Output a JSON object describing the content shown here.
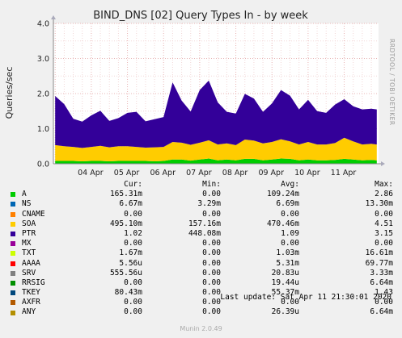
{
  "chart_data": {
    "type": "area",
    "title": "BIND_DNS [02] Query Types In - by week",
    "ylabel": "Queries/sec",
    "xlabel": "",
    "side_label": "RRDTOOL / TOBI OETIKER",
    "ylim": [
      0,
      4
    ],
    "yticks": [
      "0.0",
      "1.0",
      "2.0",
      "3.0",
      "4.0"
    ],
    "xticks": [
      "04 Apr",
      "05 Apr",
      "06 Apr",
      "07 Apr",
      "08 Apr",
      "09 Apr",
      "10 Apr",
      "11 Apr"
    ],
    "grid": true,
    "stacked": true,
    "x_days": [
      3.0,
      3.25,
      3.5,
      3.75,
      4.0,
      4.25,
      4.5,
      4.75,
      5.0,
      5.25,
      5.5,
      5.75,
      6.0,
      6.25,
      6.5,
      6.75,
      7.0,
      7.25,
      7.5,
      7.75,
      8.0,
      8.25,
      8.5,
      8.75,
      9.0,
      9.25,
      9.5,
      9.75,
      10.0,
      10.25,
      10.5,
      10.75,
      11.0,
      11.25,
      11.5,
      11.75,
      11.9
    ],
    "series": [
      {
        "name": "A",
        "color": "#00cc00",
        "values": [
          0.08,
          0.08,
          0.08,
          0.07,
          0.08,
          0.08,
          0.07,
          0.08,
          0.08,
          0.08,
          0.08,
          0.07,
          0.08,
          0.12,
          0.12,
          0.09,
          0.12,
          0.15,
          0.1,
          0.12,
          0.1,
          0.14,
          0.14,
          0.1,
          0.12,
          0.15,
          0.14,
          0.1,
          0.12,
          0.1,
          0.1,
          0.11,
          0.14,
          0.12,
          0.1,
          0.11,
          0.1
        ]
      },
      {
        "name": "SOA",
        "color": "#ffcc00",
        "values": [
          0.45,
          0.42,
          0.4,
          0.38,
          0.4,
          0.43,
          0.4,
          0.42,
          0.42,
          0.4,
          0.38,
          0.4,
          0.4,
          0.5,
          0.48,
          0.45,
          0.48,
          0.52,
          0.45,
          0.46,
          0.43,
          0.55,
          0.52,
          0.48,
          0.5,
          0.55,
          0.5,
          0.45,
          0.5,
          0.45,
          0.45,
          0.48,
          0.6,
          0.52,
          0.45,
          0.46,
          0.45
        ]
      },
      {
        "name": "PTR",
        "color": "#330099",
        "values": [
          1.4,
          1.2,
          0.8,
          0.75,
          0.9,
          1.0,
          0.75,
          0.8,
          0.95,
          1.0,
          0.75,
          0.8,
          0.85,
          1.7,
          1.2,
          0.95,
          1.5,
          1.7,
          1.2,
          0.9,
          0.9,
          1.3,
          1.2,
          0.9,
          1.1,
          1.4,
          1.3,
          1.0,
          1.2,
          0.95,
          0.9,
          1.1,
          1.1,
          1.0,
          1.0,
          1.0,
          1.0
        ]
      }
    ],
    "legend": {
      "headers": [
        "",
        "Cur:",
        "Min:",
        "Avg:",
        "Max:"
      ],
      "rows": [
        {
          "name": "A",
          "color": "#00cc00",
          "cur": "165.31m",
          "min": "0.00",
          "avg": "109.24m",
          "max": "2.86"
        },
        {
          "name": "NS",
          "color": "#0066b3",
          "cur": "6.67m",
          "min": "3.29m",
          "avg": "6.69m",
          "max": "13.30m"
        },
        {
          "name": "CNAME",
          "color": "#ff8000",
          "cur": "0.00",
          "min": "0.00",
          "avg": "0.00",
          "max": "0.00"
        },
        {
          "name": "SOA",
          "color": "#ffcc00",
          "cur": "495.10m",
          "min": "157.16m",
          "avg": "470.46m",
          "max": "4.51"
        },
        {
          "name": "PTR",
          "color": "#330099",
          "cur": "1.02",
          "min": "448.08m",
          "avg": "1.09",
          "max": "3.15"
        },
        {
          "name": "MX",
          "color": "#990099",
          "cur": "0.00",
          "min": "0.00",
          "avg": "0.00",
          "max": "0.00"
        },
        {
          "name": "TXT",
          "color": "#ccff00",
          "cur": "1.67m",
          "min": "0.00",
          "avg": "1.03m",
          "max": "16.61m"
        },
        {
          "name": "AAAA",
          "color": "#ff0000",
          "cur": "5.56u",
          "min": "0.00",
          "avg": "5.31m",
          "max": "69.77m"
        },
        {
          "name": "SRV",
          "color": "#808080",
          "cur": "555.56u",
          "min": "0.00",
          "avg": "20.83u",
          "max": "3.33m"
        },
        {
          "name": "RRSIG",
          "color": "#008f00",
          "cur": "0.00",
          "min": "0.00",
          "avg": "19.44u",
          "max": "6.64m"
        },
        {
          "name": "TKEY",
          "color": "#00487d",
          "cur": "80.43m",
          "min": "0.00",
          "avg": "55.37m",
          "max": "1.43"
        },
        {
          "name": "AXFR",
          "color": "#b35a00",
          "cur": "0.00",
          "min": "0.00",
          "avg": "0.00",
          "max": "0.00"
        },
        {
          "name": "ANY",
          "color": "#b38f00",
          "cur": "0.00",
          "min": "0.00",
          "avg": "26.39u",
          "max": "6.64m"
        }
      ]
    },
    "last_update": "Last update: Sat Apr 11 21:30:01 2020",
    "footer": "Munin 2.0.49"
  }
}
